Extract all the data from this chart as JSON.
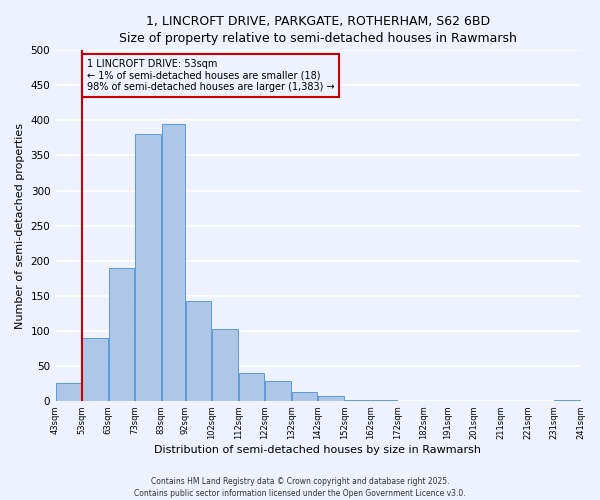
{
  "title_line1": "1, LINCROFT DRIVE, PARKGATE, ROTHERHAM, S62 6BD",
  "title_line2": "Size of property relative to semi-detached houses in Rawmarsh",
  "xlabel": "Distribution of semi-detached houses by size in Rawmarsh",
  "ylabel": "Number of semi-detached properties",
  "bar_left_edges": [
    43,
    53,
    63,
    73,
    83,
    92,
    102,
    112,
    122,
    132,
    142,
    152,
    162,
    172,
    182,
    191,
    201,
    211,
    221,
    231
  ],
  "bar_widths": [
    10,
    10,
    10,
    10,
    9,
    10,
    10,
    10,
    10,
    10,
    10,
    10,
    10,
    10,
    9,
    10,
    10,
    10,
    10,
    10
  ],
  "bar_heights": [
    25,
    90,
    190,
    380,
    395,
    143,
    103,
    40,
    28,
    12,
    7,
    1,
    1,
    0,
    0,
    0,
    0,
    0,
    0,
    1
  ],
  "tick_labels": [
    "43sqm",
    "53sqm",
    "63sqm",
    "73sqm",
    "83sqm",
    "92sqm",
    "102sqm",
    "112sqm",
    "122sqm",
    "132sqm",
    "142sqm",
    "152sqm",
    "162sqm",
    "172sqm",
    "182sqm",
    "191sqm",
    "201sqm",
    "211sqm",
    "221sqm",
    "231sqm",
    "241sqm"
  ],
  "tick_positions": [
    43,
    53,
    63,
    73,
    83,
    92,
    102,
    112,
    122,
    132,
    142,
    152,
    162,
    172,
    182,
    191,
    201,
    211,
    221,
    231,
    241
  ],
  "bar_color": "#AEC6E8",
  "bar_edge_color": "#5B9BD5",
  "vline_x": 53,
  "vline_color": "#CC0000",
  "annotation_title": "1 LINCROFT DRIVE: 53sqm",
  "annotation_line1": "← 1% of semi-detached houses are smaller (18)",
  "annotation_line2": "98% of semi-detached houses are larger (1,383) →",
  "annotation_box_color": "#CC0000",
  "ylim": [
    0,
    500
  ],
  "xlim": [
    43,
    241
  ],
  "bg_color": "#EEF2FF",
  "grid_color": "#FFFFFF",
  "footnote1": "Contains HM Land Registry data © Crown copyright and database right 2025.",
  "footnote2": "Contains public sector information licensed under the Open Government Licence v3.0."
}
